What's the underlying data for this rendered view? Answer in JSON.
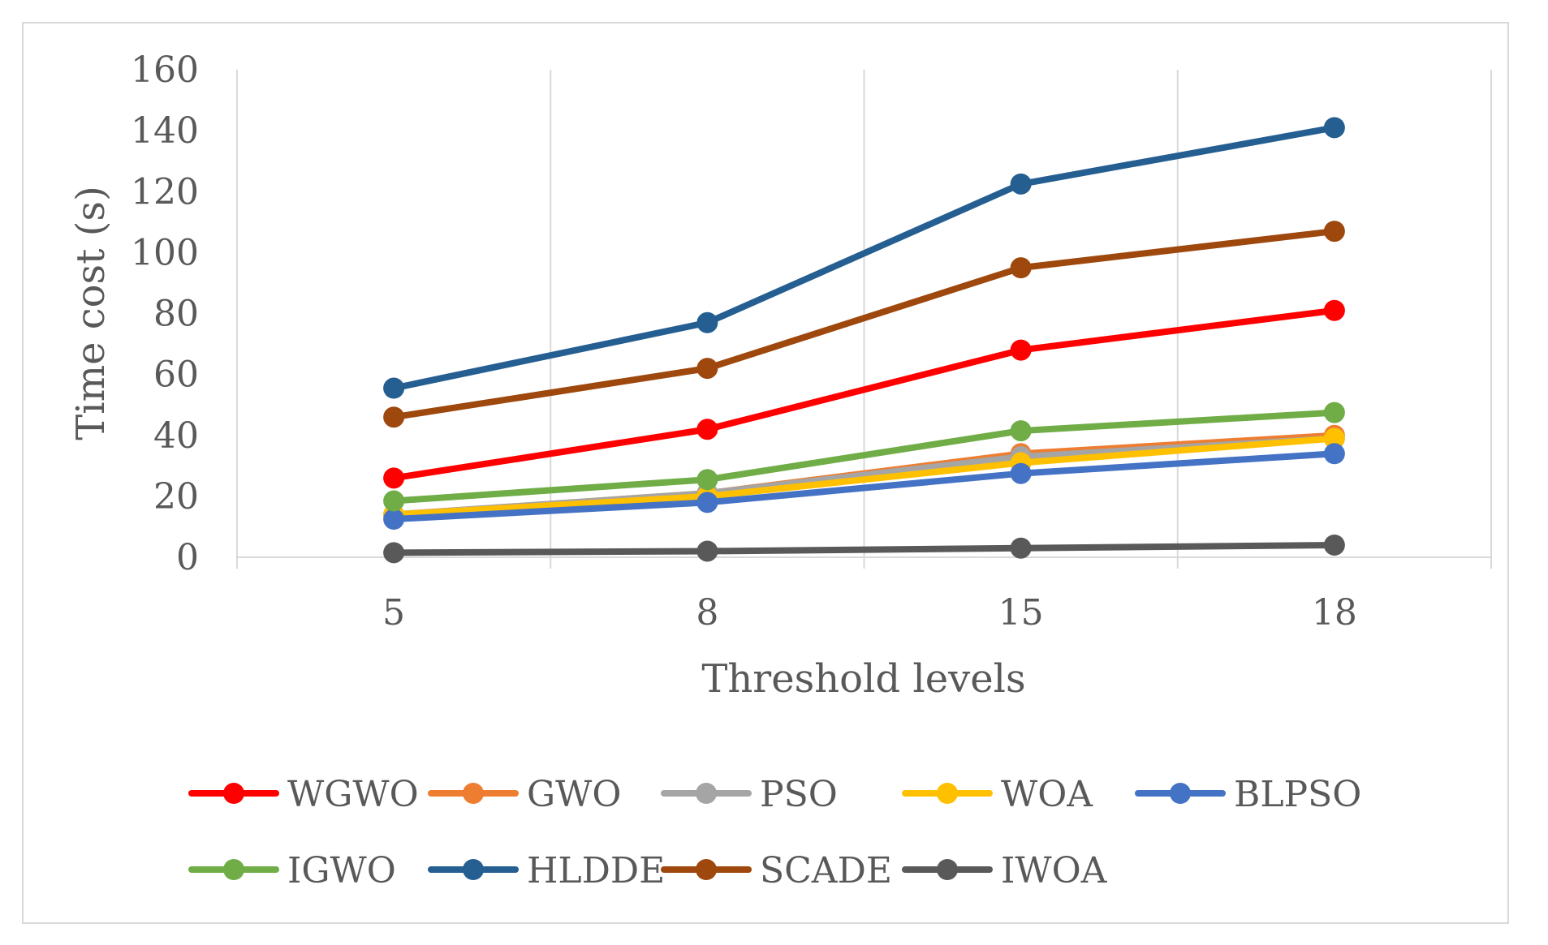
{
  "chart_data": {
    "type": "line",
    "title": "",
    "xlabel": "Threshold levels",
    "ylabel": "Time cost (s)",
    "categories": [
      "5",
      "8",
      "15",
      "18"
    ],
    "ylim": [
      0,
      160
    ],
    "yticks": [
      "0",
      "20",
      "40",
      "60",
      "80",
      "100",
      "120",
      "140",
      "160"
    ],
    "grid": "vertical",
    "legend_position": "bottom",
    "series": [
      {
        "name": "WGWO",
        "color": "#ff0000",
        "values": [
          26,
          42,
          68,
          81
        ]
      },
      {
        "name": "GWO",
        "color": "#ed7d31",
        "values": [
          14,
          21,
          34,
          40
        ]
      },
      {
        "name": "PSO",
        "color": "#a5a5a5",
        "values": [
          14,
          21,
          33,
          39
        ]
      },
      {
        "name": "WOA",
        "color": "#ffc000",
        "values": [
          14,
          20,
          31,
          39
        ]
      },
      {
        "name": "BLPSO",
        "color": "#4472c4",
        "values": [
          12.5,
          18,
          27.5,
          34
        ]
      },
      {
        "name": "IGWO",
        "color": "#70ad47",
        "values": [
          18.5,
          25.5,
          41.5,
          47.5
        ]
      },
      {
        "name": "HLDDE",
        "color": "#255e91",
        "values": [
          55.5,
          77,
          122.5,
          141
        ]
      },
      {
        "name": "SCADE",
        "color": "#9e480e",
        "values": [
          46,
          62,
          95,
          107
        ]
      },
      {
        "name": "IWOA",
        "color": "#595959",
        "values": [
          1.5,
          2,
          3,
          4
        ]
      }
    ]
  }
}
